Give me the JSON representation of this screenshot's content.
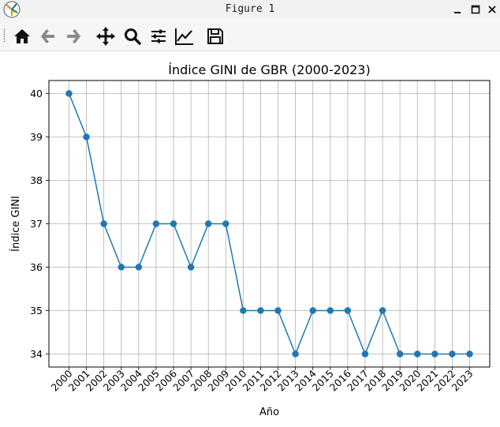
{
  "window": {
    "title": "Figure 1"
  },
  "toolbar": {
    "buttons": [
      "home-icon",
      "back-arrow-icon",
      "forward-arrow-icon",
      "pan-icon",
      "zoom-icon",
      "configure-subplots-icon",
      "edit-axis-icon",
      "save-icon"
    ]
  },
  "chart_data": {
    "type": "line",
    "title": "Índice GINI de GBR (2000-2023)",
    "xlabel": "Año",
    "ylabel": "Índice GINI",
    "x": [
      "2000",
      "2001",
      "2002",
      "2003",
      "2004",
      "2005",
      "2006",
      "2007",
      "2008",
      "2009",
      "2010",
      "2011",
      "2012",
      "2013",
      "2014",
      "2015",
      "2016",
      "2017",
      "2018",
      "2019",
      "2020",
      "2021",
      "2022",
      "2023"
    ],
    "series": [
      {
        "values": [
          40,
          39,
          37,
          36,
          36,
          37,
          37,
          36,
          37,
          37,
          35,
          35,
          35,
          34,
          35,
          35,
          35,
          34,
          35,
          34,
          34,
          34,
          34,
          34
        ],
        "color": "#1f77b4",
        "marker": "circle"
      }
    ],
    "yticks": [
      34,
      35,
      36,
      37,
      38,
      39,
      40
    ],
    "ylim": [
      33.7,
      40.3
    ],
    "grid": true,
    "xtick_rotation": 45
  }
}
